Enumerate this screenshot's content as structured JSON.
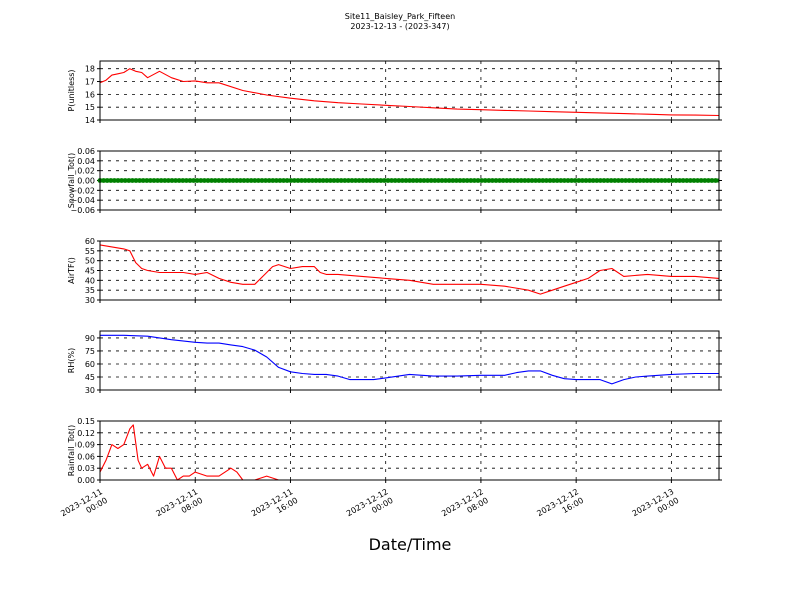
{
  "title": {
    "line1": "Site11_Baisley_Park_Fifteen",
    "line2": "2023-12-13 - (2023-347)"
  },
  "xlabel": "Date/Time",
  "colors": {
    "red": "#ff0000",
    "green": "#008000",
    "blue": "#0000ff"
  },
  "chart_data": [
    {
      "type": "line",
      "ylabel": "P(unitless)",
      "ylim": [
        14,
        18.6
      ],
      "yticks": [
        "14",
        "15",
        "16",
        "17",
        "18"
      ],
      "grid": true,
      "series": [
        {
          "color": "#ff0000",
          "x": [
            0,
            0.5,
            1,
            1.5,
            2,
            2.5,
            3,
            3.5,
            4,
            5,
            6,
            7,
            8,
            9,
            10,
            12,
            14,
            16,
            18,
            20,
            22,
            24,
            26,
            28,
            30,
            32,
            34,
            36,
            38,
            40,
            42,
            44,
            46,
            48,
            50,
            52
          ],
          "y": [
            16.9,
            17.1,
            17.5,
            17.6,
            17.7,
            18.0,
            17.8,
            17.7,
            17.3,
            17.8,
            17.3,
            17.0,
            17.05,
            16.9,
            16.9,
            16.3,
            15.95,
            15.7,
            15.5,
            15.35,
            15.25,
            15.15,
            15.05,
            14.95,
            14.85,
            14.8,
            14.75,
            14.7,
            14.65,
            14.6,
            14.55,
            14.5,
            14.45,
            14.4,
            14.38,
            14.35
          ]
        }
      ]
    },
    {
      "type": "scatter",
      "ylabel": "Snowfall_Tot()",
      "ylim": [
        -0.06,
        0.06
      ],
      "yticks": [
        "−0.06",
        "−0.04",
        "−0.02",
        "0.00",
        "0.02",
        "0.04",
        "0.06"
      ],
      "grid": true,
      "series": [
        {
          "color": "#008000",
          "x": [
            0,
            52
          ],
          "y": [
            0,
            0
          ]
        }
      ]
    },
    {
      "type": "line",
      "ylabel": "AirTF()",
      "ylim": [
        30,
        60
      ],
      "yticks": [
        "30",
        "35",
        "40",
        "45",
        "50",
        "55",
        "60"
      ],
      "grid": true,
      "series": [
        {
          "color": "#ff0000",
          "x": [
            0,
            1,
            2,
            2.5,
            3,
            3.5,
            4,
            5,
            6,
            7,
            8,
            9,
            10,
            11,
            12,
            13,
            14,
            14.5,
            15,
            16,
            17,
            18,
            18.5,
            19,
            20,
            22,
            24,
            26,
            28,
            30,
            32,
            34,
            36,
            37,
            38,
            39,
            40,
            41,
            42,
            43,
            44,
            46,
            48,
            50,
            52
          ],
          "y": [
            58,
            57,
            56,
            55,
            49,
            46,
            45,
            44,
            44,
            44,
            43,
            44,
            41,
            39,
            38,
            38,
            44,
            47,
            48,
            46,
            47,
            47,
            44,
            43,
            43,
            42,
            41,
            40,
            38,
            38,
            38,
            37,
            35,
            33,
            35,
            37,
            39,
            41,
            45,
            46,
            42,
            43,
            42,
            42,
            41
          ]
        }
      ]
    },
    {
      "type": "line",
      "ylabel": "RH(%)",
      "ylim": [
        30,
        98
      ],
      "yticks": [
        "30",
        "45",
        "60",
        "75",
        "90"
      ],
      "grid": true,
      "series": [
        {
          "color": "#0000ff",
          "x": [
            0,
            2,
            4,
            6,
            8,
            9,
            10,
            11,
            12,
            13,
            14,
            15,
            16,
            17,
            18,
            19,
            20,
            21,
            22,
            23,
            24,
            26,
            28,
            30,
            32,
            33,
            34,
            35,
            36,
            37,
            38,
            39,
            40,
            41,
            42,
            43,
            44,
            45,
            46,
            48,
            50,
            52
          ],
          "y": [
            93,
            93,
            92,
            88,
            85,
            84,
            84,
            82,
            80,
            76,
            68,
            56,
            51,
            49,
            48,
            48,
            46,
            42,
            42,
            42,
            44,
            48,
            46,
            46,
            47,
            47,
            47,
            50,
            52,
            52,
            47,
            43,
            42,
            42,
            42,
            37,
            42,
            45,
            46,
            48,
            49,
            49
          ]
        }
      ]
    },
    {
      "type": "line",
      "ylabel": "Rainfall_Tot()",
      "ylim": [
        0,
        0.15
      ],
      "yticks": [
        "0.00",
        "0.03",
        "0.06",
        "0.09",
        "0.12",
        "0.15"
      ],
      "grid": true,
      "series": [
        {
          "color": "#ff0000",
          "x": [
            0,
            0.5,
            1,
            1.5,
            2,
            2.5,
            2.8,
            3.2,
            3.5,
            4,
            4.5,
            5,
            5.5,
            6,
            6.5,
            7,
            7.5,
            8,
            9,
            10,
            11,
            11.5,
            12,
            13,
            14,
            15,
            16,
            20,
            24,
            28,
            32,
            36,
            40,
            44,
            48,
            52
          ],
          "y": [
            0.02,
            0.05,
            0.09,
            0.08,
            0.09,
            0.13,
            0.14,
            0.05,
            0.03,
            0.04,
            0.01,
            0.06,
            0.03,
            0.03,
            0.0,
            0.01,
            0.01,
            0.02,
            0.01,
            0.01,
            0.03,
            0.02,
            0.0,
            0.0,
            0.01,
            0.0,
            0.0,
            0.0,
            0.0,
            0.0,
            0.0,
            0.0,
            0.0,
            0.0,
            0.0,
            0.0
          ]
        }
      ]
    }
  ],
  "xticks": [
    {
      "x": 0,
      "line1": "2023-12-11",
      "line2": "00:00"
    },
    {
      "x": 8,
      "line1": "2023-12-11",
      "line2": "08:00"
    },
    {
      "x": 16,
      "line1": "2023-12-11",
      "line2": "16:00"
    },
    {
      "x": 24,
      "line1": "2023-12-12",
      "line2": "00:00"
    },
    {
      "x": 32,
      "line1": "2023-12-12",
      "line2": "08:00"
    },
    {
      "x": 40,
      "line1": "2023-12-12",
      "line2": "16:00"
    },
    {
      "x": 48,
      "line1": "2023-12-13",
      "line2": "00:00"
    }
  ],
  "xlim": [
    0,
    52
  ]
}
